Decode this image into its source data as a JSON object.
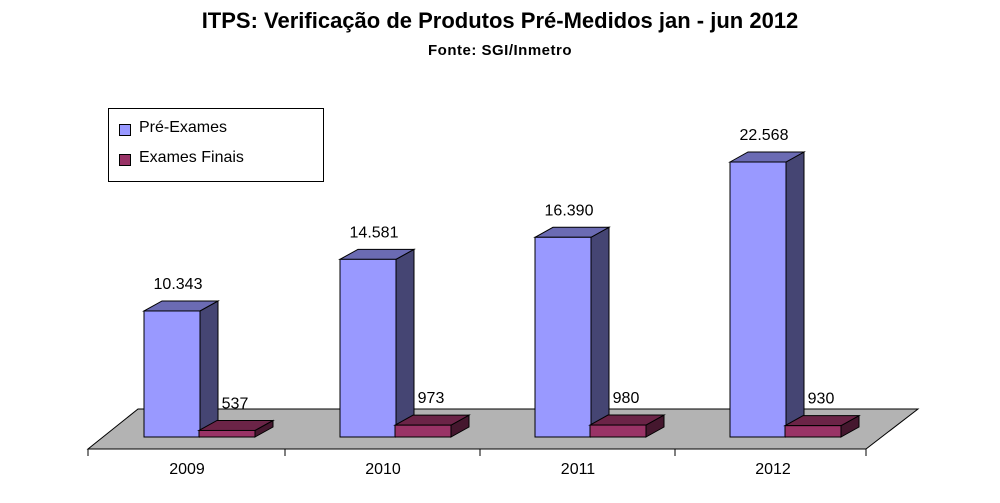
{
  "chart_data": {
    "type": "bar",
    "title": "ITPS: Verificação de Produtos Pré-Medidos jan - jun 2012",
    "subtitle": "Fonte: SGI/Inmetro",
    "categories": [
      "2009",
      "2010",
      "2011",
      "2012"
    ],
    "series": [
      {
        "name": "Pré-Exames",
        "values": [
          10343,
          14581,
          16390,
          22568
        ],
        "labels": [
          "10.343",
          "14.581",
          "16.390",
          "22.568"
        ],
        "color": "#9999ff"
      },
      {
        "name": "Exames Finais",
        "values": [
          537,
          973,
          980,
          930
        ],
        "labels": [
          "537",
          "973",
          "980",
          "930"
        ],
        "color": "#993366"
      }
    ],
    "legend": "top-left",
    "style": "3d-column"
  }
}
